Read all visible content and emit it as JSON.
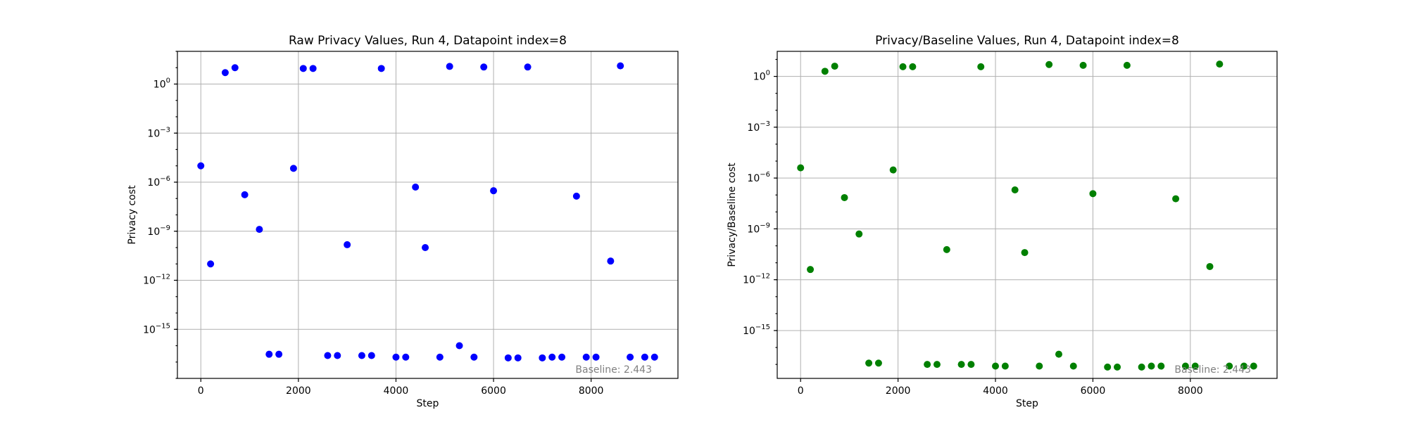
{
  "chart_data": [
    {
      "type": "scatter",
      "title": "Raw Privacy Values, Run 4, Datapoint index=8",
      "xlabel": "Step",
      "ylabel": "Privacy cost",
      "y_scale": "log",
      "grid": true,
      "color": "#0000ff",
      "xlim": [
        -480,
        9780
      ],
      "ylim": [
        1e-18,
        100.0
      ],
      "x_ticks": [
        0,
        2000,
        4000,
        6000,
        8000
      ],
      "y_tick_exponents": [
        0,
        -3,
        -6,
        -9,
        -12,
        -15
      ],
      "annotation": "Baseline: 2.443",
      "x": [
        0,
        200,
        500,
        700,
        900,
        1200,
        1400,
        1600,
        1900,
        2100,
        2300,
        2600,
        2800,
        3000,
        3300,
        3500,
        3700,
        4000,
        4200,
        4400,
        4600,
        4900,
        5100,
        5300,
        5600,
        5800,
        6000,
        6300,
        6500,
        6700,
        7000,
        7200,
        7400,
        7700,
        7900,
        8100,
        8400,
        8600,
        8800,
        9100,
        9300
      ],
      "y": [
        1e-05,
        1e-11,
        5,
        10,
        1.7e-07,
        1.3e-09,
        3e-17,
        3e-17,
        7e-06,
        9,
        9,
        2.5e-17,
        2.5e-17,
        1.5e-10,
        2.5e-17,
        2.5e-17,
        9,
        2e-17,
        2e-17,
        5e-07,
        1e-10,
        2e-17,
        12,
        1e-16,
        2e-17,
        11,
        3e-07,
        1.8e-17,
        1.8e-17,
        11,
        1.8e-17,
        2e-17,
        2e-17,
        1.4e-07,
        2e-17,
        2e-17,
        1.5e-11,
        13,
        2e-17,
        2e-17,
        2e-17
      ]
    },
    {
      "type": "scatter",
      "title": "Privacy/Baseline Values, Run 4, Datapoint index=8",
      "xlabel": "Step",
      "ylabel": "Privacy/Baseline cost",
      "y_scale": "log",
      "grid": true,
      "color": "#008000",
      "xlim": [
        -480,
        9780
      ],
      "ylim": [
        1.5e-18,
        30.0
      ],
      "x_ticks": [
        0,
        2000,
        4000,
        6000,
        8000
      ],
      "y_tick_exponents": [
        0,
        -3,
        -6,
        -9,
        -12,
        -15
      ],
      "annotation": "Baseline: 2.443",
      "x": [
        0,
        200,
        500,
        700,
        900,
        1200,
        1400,
        1600,
        1900,
        2100,
        2300,
        2600,
        2800,
        3000,
        3300,
        3500,
        3700,
        4000,
        4200,
        4400,
        4600,
        4900,
        5100,
        5300,
        5600,
        5800,
        6000,
        6300,
        6500,
        6700,
        7000,
        7200,
        7400,
        7700,
        7900,
        8100,
        8400,
        8600,
        8800,
        9100,
        9300
      ],
      "y": [
        4e-06,
        4e-12,
        2,
        4,
        7e-08,
        5e-10,
        1.2e-17,
        1.2e-17,
        3e-06,
        3.7,
        3.7,
        1e-17,
        1e-17,
        6e-11,
        1e-17,
        1e-17,
        3.7,
        8e-18,
        8e-18,
        2e-07,
        4e-11,
        8e-18,
        5,
        4e-17,
        8e-18,
        4.5,
        1.2e-07,
        7e-18,
        7e-18,
        4.5,
        7e-18,
        8e-18,
        8e-18,
        6e-08,
        8e-18,
        8e-18,
        6e-12,
        5.3,
        8e-18,
        8e-18,
        8e-18
      ]
    }
  ]
}
